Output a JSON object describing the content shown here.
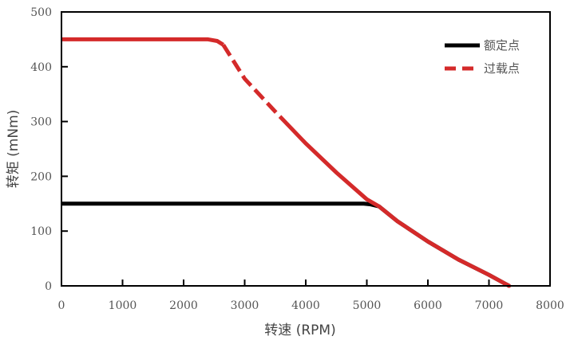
{
  "chart_data": {
    "type": "line",
    "xlabel": "转速 (RPM)",
    "ylabel": "转矩 (mNm)",
    "xlim": [
      0,
      8000
    ],
    "ylim": [
      0,
      500
    ],
    "xticks": [
      "0",
      "1000",
      "2000",
      "3000",
      "4000",
      "5000",
      "6000",
      "7000",
      "8000"
    ],
    "yticks": [
      "0",
      "100",
      "200",
      "300",
      "400",
      "500"
    ],
    "grid": false,
    "legend_position": "top-right",
    "series": [
      {
        "name": "额定点",
        "color": "#000000",
        "style": "solid",
        "x": [
          0,
          4950,
          5050,
          5200,
          5500,
          6000,
          6500,
          7000,
          7330
        ],
        "y": [
          150,
          150,
          149,
          145,
          118,
          81,
          48,
          20,
          0
        ]
      },
      {
        "name": "过载点",
        "color": "#d42a2a",
        "style": "dashed-segment",
        "dashed_range": [
          2650,
          3700
        ],
        "x": [
          0,
          2400,
          2550,
          2650,
          3000,
          3500,
          4000,
          4500,
          5000,
          5200,
          5500,
          6000,
          6500,
          7000,
          7330
        ],
        "y": [
          450,
          450,
          447,
          440,
          378,
          318,
          260,
          207,
          158,
          145,
          118,
          81,
          48,
          20,
          0
        ]
      }
    ]
  }
}
